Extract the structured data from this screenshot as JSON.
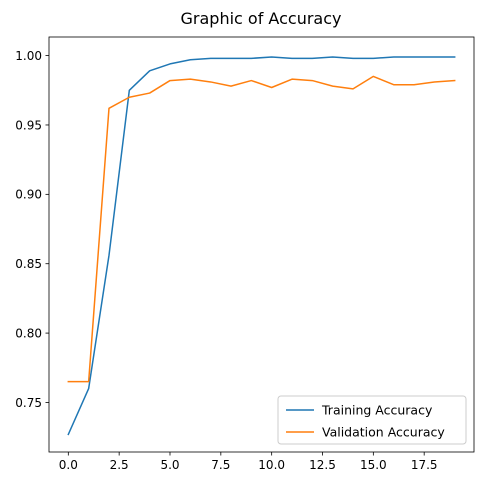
{
  "chart_data": {
    "type": "line",
    "title": "Graphic of Accuracy",
    "xlabel": "",
    "ylabel": "",
    "xlim": [
      -0.95,
      19.95
    ],
    "ylim": [
      0.7143,
      1.0134
    ],
    "x_ticks": [
      0.0,
      2.5,
      5.0,
      7.5,
      10.0,
      12.5,
      15.0,
      17.5
    ],
    "x_tick_labels": [
      "0.0",
      "2.5",
      "5.0",
      "7.5",
      "10.0",
      "12.5",
      "15.0",
      "17.5"
    ],
    "y_ticks": [
      0.75,
      0.8,
      0.85,
      0.9,
      0.95,
      1.0
    ],
    "y_tick_labels": [
      "0.75",
      "0.80",
      "0.85",
      "0.90",
      "0.95",
      "1.00"
    ],
    "grid": false,
    "legend_position": "bottom-right",
    "x": [
      0,
      1,
      2,
      3,
      4,
      5,
      6,
      7,
      8,
      9,
      10,
      11,
      12,
      13,
      14,
      15,
      16,
      17,
      18,
      19
    ],
    "series": [
      {
        "name": "Training Accuracy",
        "color": "#1f77b4",
        "values": [
          0.727,
          0.76,
          0.856,
          0.975,
          0.989,
          0.994,
          0.997,
          0.998,
          0.998,
          0.998,
          0.999,
          0.998,
          0.998,
          0.999,
          0.998,
          0.998,
          0.999,
          0.999,
          0.999,
          0.999
        ]
      },
      {
        "name": "Validation Accuracy",
        "color": "#ff7f0e",
        "values": [
          0.765,
          0.765,
          0.962,
          0.97,
          0.973,
          0.982,
          0.983,
          0.981,
          0.978,
          0.982,
          0.977,
          0.983,
          0.982,
          0.978,
          0.976,
          0.985,
          0.979,
          0.979,
          0.981,
          0.982
        ]
      }
    ]
  }
}
